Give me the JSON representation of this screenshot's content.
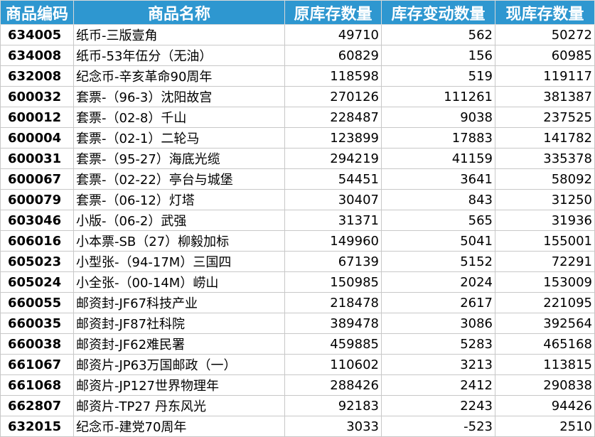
{
  "headers": [
    "商品编码",
    "商品名称",
    "原库存数量",
    "库存变动数量",
    "现库存数量"
  ],
  "rows": [
    [
      "634005",
      "纸币-三版壹角",
      "49710",
      "562",
      "50272"
    ],
    [
      "634008",
      "纸币-53年伍分（无油）",
      "60829",
      "156",
      "60985"
    ],
    [
      "632008",
      "纪念币-辛亥革命90周年",
      "118598",
      "519",
      "119117"
    ],
    [
      "600032",
      "套票-（96-3）沈阳故宫",
      "270126",
      "111261",
      "381387"
    ],
    [
      "600012",
      "套票-（02-8）千山",
      "228487",
      "9038",
      "237525"
    ],
    [
      "600004",
      "套票-（02-1）二轮马",
      "123899",
      "17883",
      "141782"
    ],
    [
      "600031",
      "套票-（95-27）海底光缆",
      "294219",
      "41159",
      "335378"
    ],
    [
      "600067",
      "套票-（02-22）亭台与城堡",
      "54451",
      "3641",
      "58092"
    ],
    [
      "600079",
      "套票-（06-12）灯塔",
      "30407",
      "843",
      "31250"
    ],
    [
      "603046",
      "小版-（06-2）武强",
      "31371",
      "565",
      "31936"
    ],
    [
      "606016",
      "小本票-SB（27）柳毅加标",
      "149960",
      "5041",
      "155001"
    ],
    [
      "605023",
      "小型张-（94-17M）三国四",
      "67139",
      "5152",
      "72291"
    ],
    [
      "605024",
      "小全张-（00-14M）崂山",
      "150985",
      "2024",
      "153009"
    ],
    [
      "660055",
      "邮资封-JF67科技产业",
      "218478",
      "2617",
      "221095"
    ],
    [
      "660035",
      "邮资封-JF87社科院",
      "389478",
      "3086",
      "392564"
    ],
    [
      "660038",
      "邮资封-JF62难民署",
      "459885",
      "5283",
      "465168"
    ],
    [
      "661067",
      "邮资片-JP63万国邮政（一）",
      "110602",
      "3213",
      "113815"
    ],
    [
      "661068",
      "邮资片-JP127世界物理年",
      "288426",
      "2412",
      "290838"
    ],
    [
      "662807",
      "邮资片-TP27 丹东风光",
      "92183",
      "2243",
      "94426"
    ],
    [
      "632015",
      "纪念币-建党70周年",
      "3033",
      "-523",
      "2510"
    ]
  ]
}
